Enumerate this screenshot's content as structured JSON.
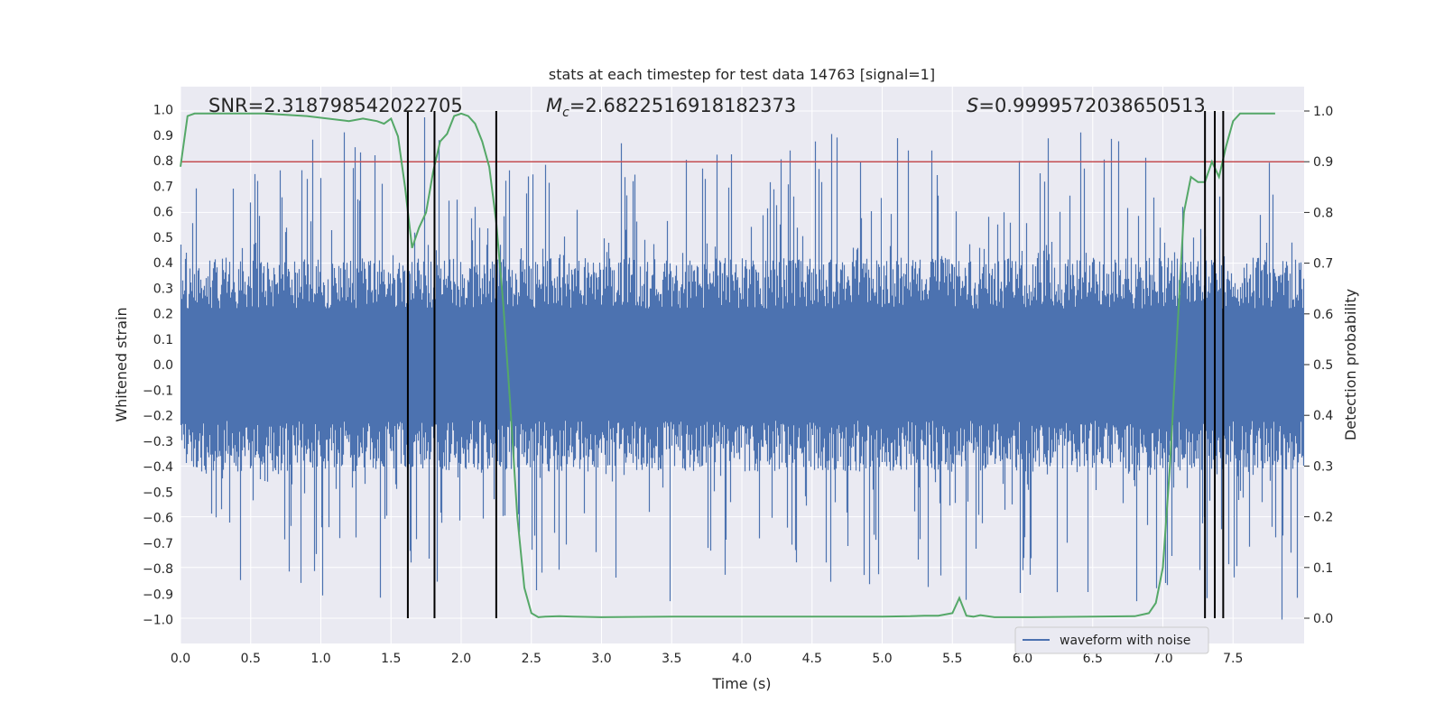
{
  "chart_data": {
    "type": "line",
    "title": "stats at each timestep for test data 14763 [signal=1]",
    "xlabel": "Time (s)",
    "ylabel_left": "Whitened strain",
    "ylabel_right": "Detection probability",
    "xlim": [
      0.0,
      8.0
    ],
    "ylim_left": [
      -1.1,
      1.1
    ],
    "ylim_right": [
      -0.05,
      1.05
    ],
    "xticks": [
      "0.0",
      "0.5",
      "1.0",
      "1.5",
      "2.0",
      "2.5",
      "3.0",
      "3.5",
      "4.0",
      "4.5",
      "5.0",
      "5.5",
      "6.0",
      "6.5",
      "7.0",
      "7.5"
    ],
    "yticks_left": [
      "−1.0",
      "−0.9",
      "−0.8",
      "−0.7",
      "−0.6",
      "−0.5",
      "−0.4",
      "−0.3",
      "−0.2",
      "−0.1",
      "0.0",
      "0.1",
      "0.2",
      "0.3",
      "0.4",
      "0.5",
      "0.6",
      "0.7",
      "0.8",
      "0.9",
      "1.0"
    ],
    "yticks_right": [
      "0.0",
      "0.1",
      "0.2",
      "0.3",
      "0.4",
      "0.5",
      "0.6",
      "0.7",
      "0.8",
      "0.9",
      "1.0"
    ],
    "grid": true,
    "legend": {
      "position": "lower-right",
      "entries": [
        "waveform with noise"
      ]
    },
    "annotations": {
      "snr_text": "SNR=2.318798542022705",
      "mc_prefix": "M",
      "mc_sub": "c",
      "mc_value": "=2.6822516918182373",
      "s_prefix": "S",
      "s_value": "=0.9999572038650513"
    },
    "series": [
      {
        "name": "waveform with noise",
        "axis": "left",
        "color": "#4c72b0",
        "style": "noise-waveform",
        "typical_amplitude": 0.4,
        "peak_max": 0.97,
        "peak_min": -1.0
      },
      {
        "axis": "right",
        "color": "#55a868",
        "x": [
          0.0,
          0.05,
          0.1,
          0.3,
          0.6,
          0.9,
          1.2,
          1.3,
          1.4,
          1.45,
          1.5,
          1.55,
          1.6,
          1.65,
          1.7,
          1.75,
          1.8,
          1.85,
          1.9,
          1.95,
          2.0,
          2.05,
          2.1,
          2.15,
          2.2,
          2.25,
          2.3,
          2.35,
          2.4,
          2.45,
          2.5,
          2.55,
          2.6,
          2.7,
          2.8,
          3.0,
          3.5,
          4.0,
          4.5,
          5.0,
          5.2,
          5.3,
          5.4,
          5.5,
          5.55,
          5.6,
          5.65,
          5.7,
          5.8,
          5.9,
          6.0,
          6.5,
          6.8,
          6.9,
          6.95,
          7.0,
          7.05,
          7.1,
          7.15,
          7.2,
          7.25,
          7.3,
          7.35,
          7.4,
          7.45,
          7.5,
          7.55,
          7.6,
          7.7,
          7.8
        ],
        "values": [
          0.89,
          0.99,
          0.995,
          0.995,
          0.995,
          0.99,
          0.98,
          0.985,
          0.98,
          0.975,
          0.985,
          0.95,
          0.85,
          0.73,
          0.77,
          0.8,
          0.88,
          0.94,
          0.955,
          0.99,
          0.995,
          0.99,
          0.975,
          0.94,
          0.89,
          0.78,
          0.62,
          0.42,
          0.2,
          0.06,
          0.01,
          0.002,
          0.003,
          0.004,
          0.003,
          0.002,
          0.003,
          0.003,
          0.003,
          0.003,
          0.004,
          0.005,
          0.005,
          0.01,
          0.04,
          0.005,
          0.003,
          0.006,
          0.002,
          0.002,
          0.002,
          0.003,
          0.004,
          0.01,
          0.03,
          0.1,
          0.3,
          0.55,
          0.8,
          0.87,
          0.86,
          0.86,
          0.9,
          0.87,
          0.93,
          0.98,
          0.995,
          0.995,
          0.995,
          0.995
        ]
      },
      {
        "axis": "right",
        "color": "#c44e52",
        "style": "hline",
        "value": 0.9
      }
    ],
    "vlines": {
      "color": "#000000",
      "x": [
        1.62,
        1.81,
        2.25,
        7.3,
        7.37,
        7.43
      ],
      "y_range_right": [
        0.0,
        1.0
      ]
    }
  }
}
